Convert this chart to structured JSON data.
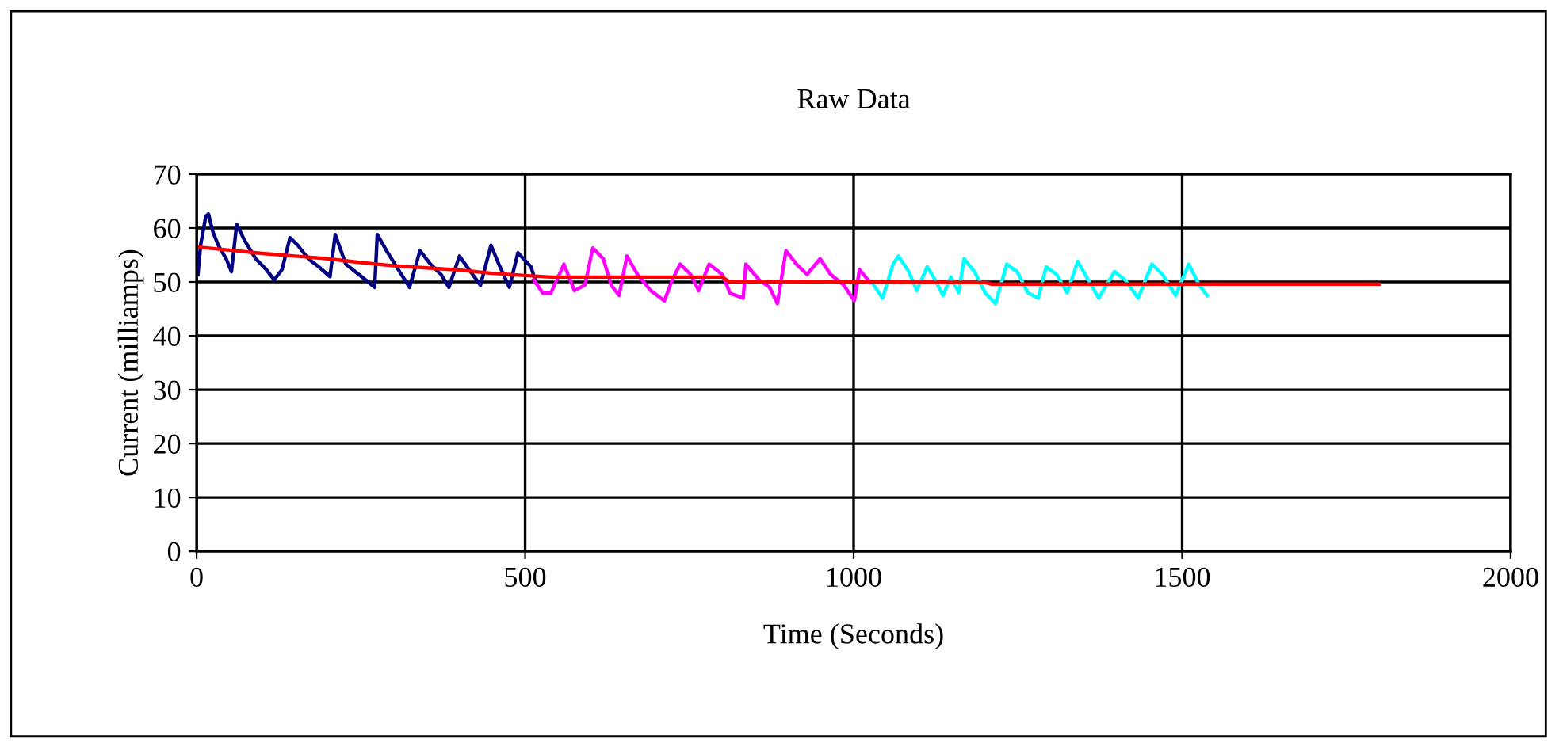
{
  "chart_data": {
    "type": "line",
    "title": "Raw Data",
    "xlabel": "Time (Seconds)",
    "ylabel": "Current (milliamps)",
    "xlim": [
      0,
      2000
    ],
    "xticks": [
      0,
      500,
      1000,
      1500,
      2000
    ],
    "ylim": [
      0,
      70
    ],
    "yticks": [
      0,
      10,
      20,
      30,
      40,
      50,
      60,
      70
    ],
    "grid": true,
    "marker": "none",
    "line_style": "solid",
    "series": [
      {
        "color": "#000080",
        "x": [
          2,
          6,
          14,
          18,
          25,
          33,
          45,
          53,
          61,
          73,
          90,
          106,
          118,
          130,
          142,
          154,
          170,
          186,
          203,
          211,
          227,
          251,
          271,
          275,
          291,
          307,
          324,
          340,
          356,
          372,
          384,
          400,
          420,
          432,
          448,
          460,
          476,
          489,
          509,
          515
        ],
        "values": [
          51.4,
          56.8,
          62.2,
          62.6,
          59.2,
          56.8,
          54.3,
          51.9,
          60.7,
          57.7,
          54.3,
          52.3,
          50.4,
          52.3,
          58.2,
          56.8,
          54.3,
          52.8,
          51.0,
          58.8,
          53.3,
          51.0,
          49.0,
          58.8,
          55.4,
          52.3,
          49.0,
          55.8,
          53.3,
          51.4,
          49.0,
          54.8,
          51.4,
          49.4,
          56.8,
          53.3,
          49.0,
          55.4,
          52.8,
          50.4
        ]
      },
      {
        "color": "#ff00ff",
        "x": [
          513,
          527,
          539,
          559,
          575,
          591,
          603,
          619,
          631,
          643,
          655,
          671,
          691,
          712,
          724,
          736,
          752,
          764,
          780,
          800,
          812,
          832,
          836,
          856,
          872,
          884,
          897,
          913,
          929,
          949,
          965,
          985,
          1001,
          1009,
          1025
        ],
        "values": [
          50.4,
          47.9,
          47.9,
          53.3,
          48.4,
          49.4,
          56.3,
          54.3,
          49.4,
          47.5,
          54.8,
          51.4,
          48.4,
          46.5,
          50.4,
          53.3,
          51.4,
          48.4,
          53.3,
          51.4,
          47.9,
          47.0,
          53.3,
          50.4,
          49.0,
          46.0,
          55.8,
          53.3,
          51.4,
          54.3,
          51.4,
          49.4,
          46.5,
          52.3,
          49.9
        ]
      },
      {
        "color": "#00ffff",
        "x": [
          1028,
          1044,
          1060,
          1068,
          1084,
          1096,
          1112,
          1124,
          1136,
          1148,
          1160,
          1168,
          1184,
          1200,
          1216,
          1233,
          1249,
          1265,
          1281,
          1293,
          1309,
          1325,
          1341,
          1357,
          1373,
          1397,
          1413,
          1433,
          1454,
          1470,
          1490,
          1510,
          1526,
          1538
        ],
        "values": [
          49.9,
          47.0,
          53.3,
          54.8,
          51.9,
          48.4,
          52.8,
          50.4,
          47.5,
          50.9,
          48.0,
          54.3,
          51.9,
          48.0,
          46.0,
          53.3,
          51.9,
          48.0,
          47.0,
          52.8,
          51.4,
          48.0,
          53.8,
          50.4,
          47.0,
          51.9,
          50.4,
          47.0,
          53.3,
          51.4,
          47.5,
          53.3,
          49.4,
          47.5
        ]
      },
      {
        "color": "#ff0000",
        "x": [
          0,
          50,
          100,
          150,
          200,
          250,
          300,
          350,
          400,
          450,
          500,
          540,
          800,
          810,
          1200,
          1210,
          1800
        ],
        "values": [
          56.5,
          55.9,
          55.3,
          54.8,
          54.3,
          53.6,
          53.0,
          52.6,
          52.2,
          51.6,
          51.2,
          50.9,
          50.9,
          50.1,
          49.9,
          49.6,
          49.6
        ]
      }
    ]
  }
}
